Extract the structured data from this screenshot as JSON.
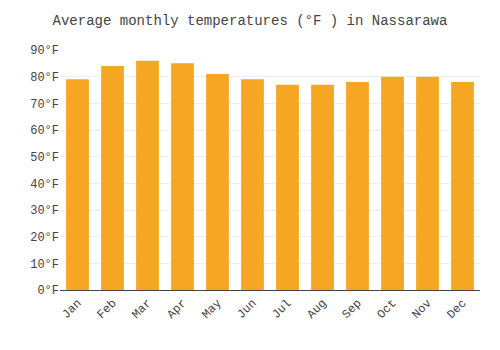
{
  "chart_data": {
    "type": "bar",
    "title": "Average monthly temperatures (°F ) in Nassarawa",
    "categories": [
      "Jan",
      "Feb",
      "Mar",
      "Apr",
      "May",
      "Jun",
      "Jul",
      "Aug",
      "Sep",
      "Oct",
      "Nov",
      "Dec"
    ],
    "values": [
      79,
      84,
      86,
      85,
      81,
      79,
      77,
      77,
      78,
      80,
      80,
      78
    ],
    "color": "#F5A623",
    "ylim": [
      0,
      90
    ],
    "yticks": [
      {
        "value": 0,
        "label": "0°F"
      },
      {
        "value": 10,
        "label": "10°F"
      },
      {
        "value": 20,
        "label": "20°F"
      },
      {
        "value": 30,
        "label": "30°F"
      },
      {
        "value": 40,
        "label": "40°F"
      },
      {
        "value": 50,
        "label": "50°F"
      },
      {
        "value": 60,
        "label": "60°F"
      },
      {
        "value": 70,
        "label": "70°F"
      },
      {
        "value": 80,
        "label": "80°F"
      },
      {
        "value": 90,
        "label": "90°F"
      }
    ],
    "grid": true
  }
}
